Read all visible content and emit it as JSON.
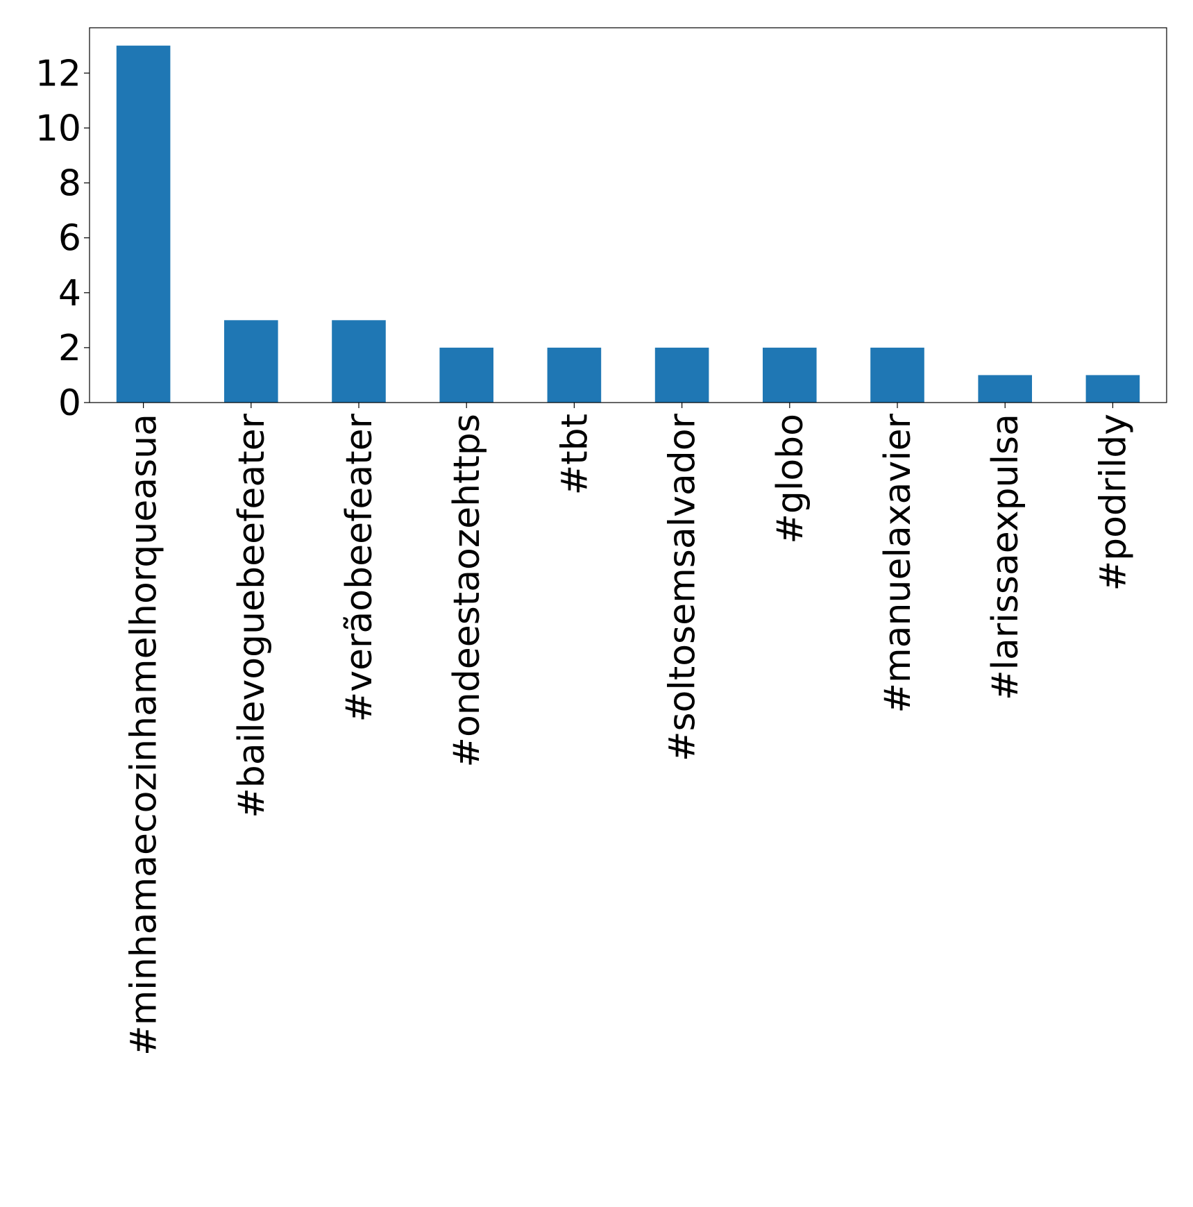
{
  "chart_data": {
    "type": "bar",
    "categories": [
      "#minhamaecozinhamelhorqueasua",
      "#bailevoguebeefeater",
      "#verãobeefeater",
      "#ondeestaozehttps",
      "#tbt",
      "#soltosemsalvador",
      "#globo",
      "#manuelaxavier",
      "#larissaexpulsa",
      "#podrildy"
    ],
    "values": [
      13,
      3,
      3,
      2,
      2,
      2,
      2,
      2,
      1,
      1
    ],
    "yticks": [
      0,
      2,
      4,
      6,
      8,
      10,
      12
    ],
    "ylim": [
      0,
      13.65
    ],
    "title": "",
    "xlabel": "",
    "ylabel": "",
    "bar_color": "#1f77b4",
    "grid": false,
    "legend": "none",
    "x_tick_rotation": "vertical"
  }
}
